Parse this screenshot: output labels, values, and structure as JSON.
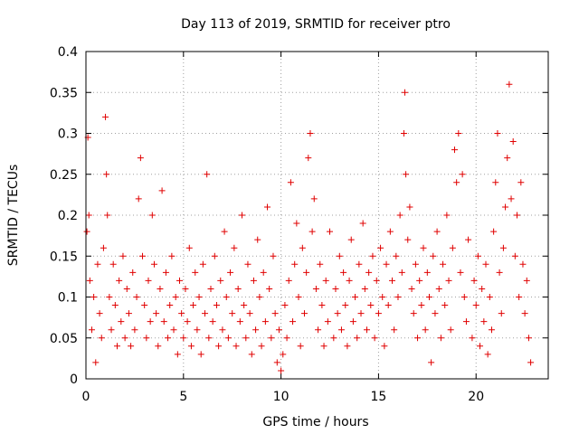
{
  "chart_data": {
    "type": "scatter",
    "title": "Day 113 of 2019, SRMTID for receiver ptro",
    "xlabel": "GPS time / hours",
    "ylabel": "SRMTID / TECUs",
    "xlim": [
      0,
      23.7
    ],
    "ylim": [
      0,
      0.4
    ],
    "x_ticks": [
      0,
      5,
      10,
      15,
      20
    ],
    "x_tick_labels": [
      "0",
      "5",
      "10",
      "15",
      "20"
    ],
    "y_ticks": [
      0,
      0.05,
      0.1,
      0.15,
      0.2,
      0.25,
      0.3,
      0.35,
      0.4
    ],
    "y_tick_labels": [
      "0",
      "0.05",
      "0.1",
      "0.15",
      "0.2",
      "0.25",
      "0.3",
      "0.35",
      "0.4"
    ],
    "grid": true,
    "marker": "+",
    "color": "#e00000",
    "series": [
      {
        "name": "SRMTID",
        "points": [
          [
            0.05,
            0.18
          ],
          [
            0.1,
            0.295
          ],
          [
            0.15,
            0.2
          ],
          [
            0.2,
            0.12
          ],
          [
            0.3,
            0.06
          ],
          [
            0.4,
            0.1
          ],
          [
            0.5,
            0.02
          ],
          [
            0.6,
            0.14
          ],
          [
            0.7,
            0.08
          ],
          [
            0.8,
            0.05
          ],
          [
            0.9,
            0.16
          ],
          [
            1.0,
            0.32
          ],
          [
            1.05,
            0.25
          ],
          [
            1.1,
            0.2
          ],
          [
            1.2,
            0.1
          ],
          [
            1.3,
            0.06
          ],
          [
            1.4,
            0.14
          ],
          [
            1.5,
            0.09
          ],
          [
            1.6,
            0.04
          ],
          [
            1.7,
            0.12
          ],
          [
            1.8,
            0.07
          ],
          [
            1.9,
            0.15
          ],
          [
            2.0,
            0.05
          ],
          [
            2.1,
            0.11
          ],
          [
            2.2,
            0.08
          ],
          [
            2.3,
            0.04
          ],
          [
            2.4,
            0.13
          ],
          [
            2.5,
            0.06
          ],
          [
            2.6,
            0.1
          ],
          [
            2.7,
            0.22
          ],
          [
            2.8,
            0.27
          ],
          [
            2.9,
            0.15
          ],
          [
            3.0,
            0.09
          ],
          [
            3.1,
            0.05
          ],
          [
            3.2,
            0.12
          ],
          [
            3.3,
            0.07
          ],
          [
            3.4,
            0.2
          ],
          [
            3.5,
            0.14
          ],
          [
            3.6,
            0.08
          ],
          [
            3.7,
            0.04
          ],
          [
            3.8,
            0.11
          ],
          [
            3.9,
            0.23
          ],
          [
            4.0,
            0.07
          ],
          [
            4.1,
            0.13
          ],
          [
            4.2,
            0.05
          ],
          [
            4.3,
            0.09
          ],
          [
            4.4,
            0.15
          ],
          [
            4.5,
            0.06
          ],
          [
            4.6,
            0.1
          ],
          [
            4.7,
            0.03
          ],
          [
            4.8,
            0.12
          ],
          [
            4.9,
            0.08
          ],
          [
            5.0,
            0.05
          ],
          [
            5.1,
            0.11
          ],
          [
            5.2,
            0.07
          ],
          [
            5.3,
            0.16
          ],
          [
            5.4,
            0.04
          ],
          [
            5.5,
            0.09
          ],
          [
            5.6,
            0.13
          ],
          [
            5.7,
            0.06
          ],
          [
            5.8,
            0.1
          ],
          [
            5.9,
            0.03
          ],
          [
            6.0,
            0.14
          ],
          [
            6.1,
            0.08
          ],
          [
            6.2,
            0.25
          ],
          [
            6.3,
            0.05
          ],
          [
            6.4,
            0.11
          ],
          [
            6.5,
            0.07
          ],
          [
            6.6,
            0.15
          ],
          [
            6.7,
            0.09
          ],
          [
            6.8,
            0.04
          ],
          [
            6.9,
            0.12
          ],
          [
            7.0,
            0.06
          ],
          [
            7.1,
            0.18
          ],
          [
            7.2,
            0.1
          ],
          [
            7.3,
            0.05
          ],
          [
            7.4,
            0.13
          ],
          [
            7.5,
            0.08
          ],
          [
            7.6,
            0.16
          ],
          [
            7.7,
            0.04
          ],
          [
            7.8,
            0.11
          ],
          [
            7.9,
            0.07
          ],
          [
            8.0,
            0.2
          ],
          [
            8.1,
            0.09
          ],
          [
            8.2,
            0.05
          ],
          [
            8.3,
            0.14
          ],
          [
            8.4,
            0.08
          ],
          [
            8.5,
            0.03
          ],
          [
            8.6,
            0.12
          ],
          [
            8.7,
            0.06
          ],
          [
            8.8,
            0.17
          ],
          [
            8.9,
            0.1
          ],
          [
            9.0,
            0.04
          ],
          [
            9.1,
            0.13
          ],
          [
            9.2,
            0.07
          ],
          [
            9.3,
            0.21
          ],
          [
            9.4,
            0.11
          ],
          [
            9.5,
            0.05
          ],
          [
            9.6,
            0.15
          ],
          [
            9.7,
            0.08
          ],
          [
            9.8,
            0.02
          ],
          [
            9.9,
            0.06
          ],
          [
            10.0,
            0.01
          ],
          [
            10.1,
            0.03
          ],
          [
            10.2,
            0.09
          ],
          [
            10.3,
            0.05
          ],
          [
            10.4,
            0.12
          ],
          [
            10.5,
            0.24
          ],
          [
            10.6,
            0.07
          ],
          [
            10.7,
            0.14
          ],
          [
            10.8,
            0.19
          ],
          [
            10.9,
            0.1
          ],
          [
            11.0,
            0.04
          ],
          [
            11.1,
            0.16
          ],
          [
            11.2,
            0.08
          ],
          [
            11.3,
            0.13
          ],
          [
            11.4,
            0.27
          ],
          [
            11.5,
            0.3
          ],
          [
            11.6,
            0.18
          ],
          [
            11.7,
            0.22
          ],
          [
            11.8,
            0.11
          ],
          [
            11.9,
            0.06
          ],
          [
            12.0,
            0.14
          ],
          [
            12.1,
            0.09
          ],
          [
            12.2,
            0.04
          ],
          [
            12.3,
            0.12
          ],
          [
            12.4,
            0.07
          ],
          [
            12.5,
            0.18
          ],
          [
            12.7,
            0.05
          ],
          [
            12.8,
            0.11
          ],
          [
            12.9,
            0.08
          ],
          [
            13.0,
            0.15
          ],
          [
            13.1,
            0.06
          ],
          [
            13.2,
            0.13
          ],
          [
            13.3,
            0.09
          ],
          [
            13.4,
            0.04
          ],
          [
            13.5,
            0.12
          ],
          [
            13.6,
            0.17
          ],
          [
            13.7,
            0.07
          ],
          [
            13.8,
            0.1
          ],
          [
            13.9,
            0.05
          ],
          [
            14.0,
            0.14
          ],
          [
            14.1,
            0.08
          ],
          [
            14.2,
            0.19
          ],
          [
            14.3,
            0.11
          ],
          [
            14.4,
            0.06
          ],
          [
            14.5,
            0.13
          ],
          [
            14.6,
            0.09
          ],
          [
            14.7,
            0.15
          ],
          [
            14.8,
            0.05
          ],
          [
            14.9,
            0.12
          ],
          [
            15.0,
            0.08
          ],
          [
            15.1,
            0.16
          ],
          [
            15.2,
            0.1
          ],
          [
            15.3,
            0.04
          ],
          [
            15.4,
            0.14
          ],
          [
            15.5,
            0.09
          ],
          [
            15.6,
            0.18
          ],
          [
            15.7,
            0.12
          ],
          [
            15.8,
            0.06
          ],
          [
            15.9,
            0.15
          ],
          [
            16.0,
            0.1
          ],
          [
            16.1,
            0.2
          ],
          [
            16.2,
            0.13
          ],
          [
            16.3,
            0.3
          ],
          [
            16.35,
            0.35
          ],
          [
            16.4,
            0.25
          ],
          [
            16.5,
            0.17
          ],
          [
            16.6,
            0.21
          ],
          [
            16.7,
            0.11
          ],
          [
            16.8,
            0.08
          ],
          [
            16.9,
            0.14
          ],
          [
            17.0,
            0.05
          ],
          [
            17.1,
            0.12
          ],
          [
            17.2,
            0.09
          ],
          [
            17.3,
            0.16
          ],
          [
            17.4,
            0.06
          ],
          [
            17.5,
            0.13
          ],
          [
            17.6,
            0.1
          ],
          [
            17.7,
            0.02
          ],
          [
            17.8,
            0.15
          ],
          [
            17.9,
            0.08
          ],
          [
            18.0,
            0.18
          ],
          [
            18.1,
            0.11
          ],
          [
            18.2,
            0.05
          ],
          [
            18.3,
            0.14
          ],
          [
            18.4,
            0.09
          ],
          [
            18.5,
            0.2
          ],
          [
            18.6,
            0.12
          ],
          [
            18.7,
            0.06
          ],
          [
            18.8,
            0.16
          ],
          [
            18.9,
            0.28
          ],
          [
            19.0,
            0.24
          ],
          [
            19.1,
            0.3
          ],
          [
            19.2,
            0.13
          ],
          [
            19.3,
            0.25
          ],
          [
            19.4,
            0.1
          ],
          [
            19.5,
            0.07
          ],
          [
            19.6,
            0.17
          ],
          [
            19.8,
            0.05
          ],
          [
            19.9,
            0.12
          ],
          [
            20.0,
            0.09
          ],
          [
            20.1,
            0.15
          ],
          [
            20.2,
            0.04
          ],
          [
            20.3,
            0.11
          ],
          [
            20.4,
            0.07
          ],
          [
            20.5,
            0.14
          ],
          [
            20.6,
            0.03
          ],
          [
            20.7,
            0.1
          ],
          [
            20.8,
            0.06
          ],
          [
            20.9,
            0.18
          ],
          [
            21.0,
            0.24
          ],
          [
            21.1,
            0.3
          ],
          [
            21.2,
            0.13
          ],
          [
            21.3,
            0.08
          ],
          [
            21.4,
            0.16
          ],
          [
            21.5,
            0.21
          ],
          [
            21.6,
            0.27
          ],
          [
            21.7,
            0.36
          ],
          [
            21.8,
            0.22
          ],
          [
            21.9,
            0.29
          ],
          [
            22.0,
            0.15
          ],
          [
            22.1,
            0.2
          ],
          [
            22.2,
            0.1
          ],
          [
            22.3,
            0.24
          ],
          [
            22.4,
            0.14
          ],
          [
            22.5,
            0.08
          ],
          [
            22.6,
            0.12
          ],
          [
            22.7,
            0.05
          ],
          [
            22.8,
            0.02
          ]
        ]
      }
    ]
  }
}
